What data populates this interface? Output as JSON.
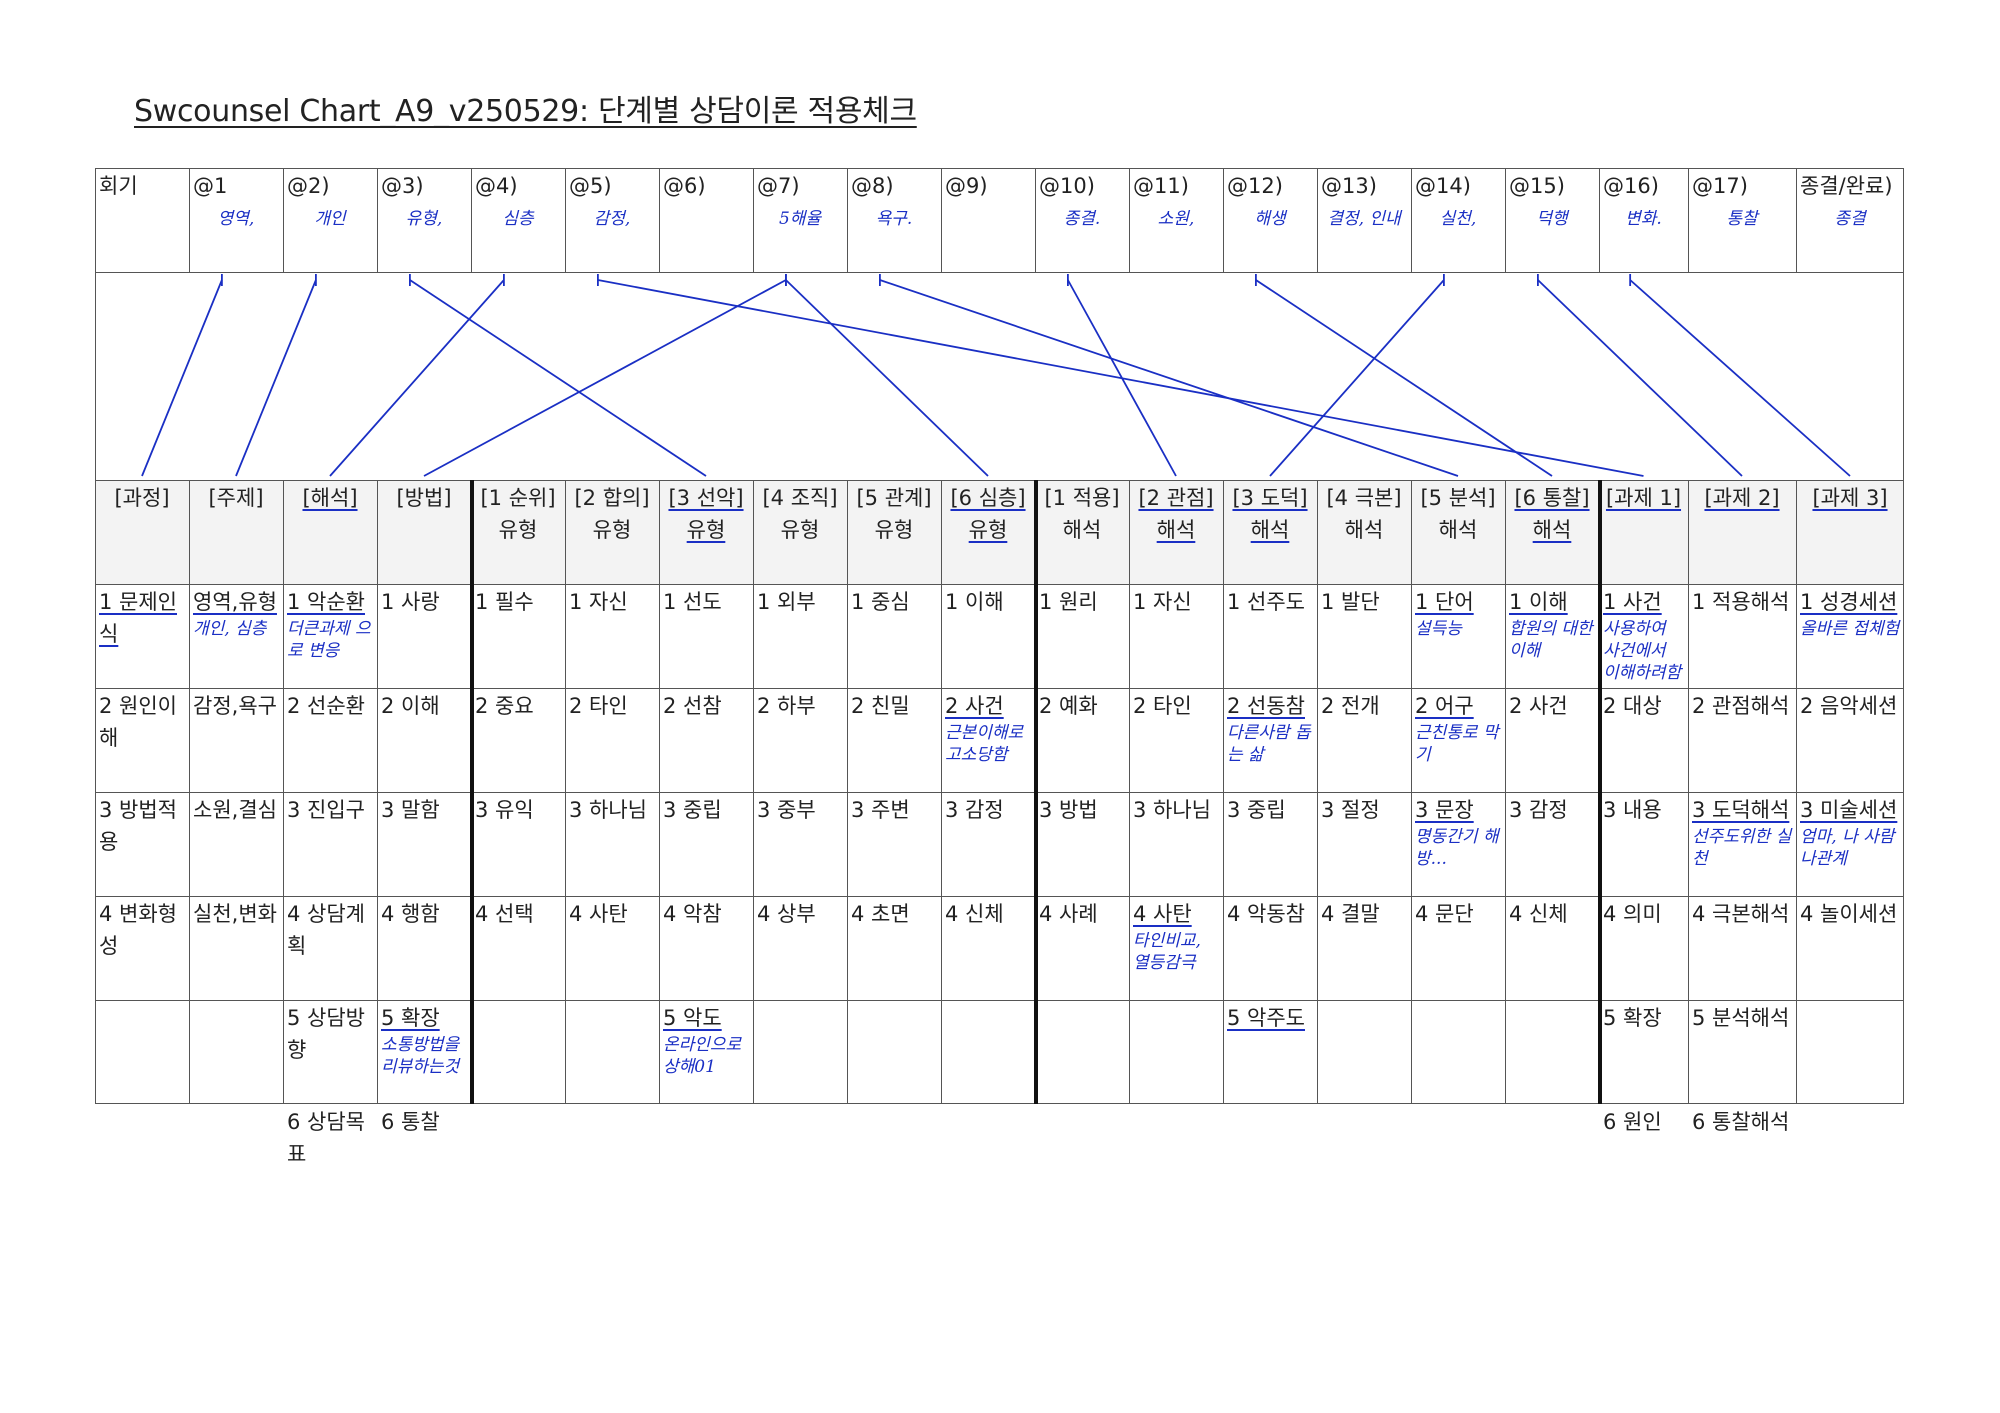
{
  "title": "Swcounsel Chart_A9_v250529: 단계별 상담이론 적용체크",
  "sessions": [
    {
      "label": "회기",
      "note": ""
    },
    {
      "label": "@1",
      "note": "영역,"
    },
    {
      "label": "@2)",
      "note": "개인"
    },
    {
      "label": "@3)",
      "note": "유형,"
    },
    {
      "label": "@4)",
      "note": "심층"
    },
    {
      "label": "@5)",
      "note": "감정,"
    },
    {
      "label": "@6)",
      "note": ""
    },
    {
      "label": "@7)",
      "note": "5해율"
    },
    {
      "label": "@8)",
      "note": "욕구."
    },
    {
      "label": "@9)",
      "note": ""
    },
    {
      "label": "@10)",
      "note": "종결."
    },
    {
      "label": "@11)",
      "note": "소원,"
    },
    {
      "label": "@12)",
      "note": "해생"
    },
    {
      "label": "@13)",
      "note": "결정, 인내"
    },
    {
      "label": "@14)",
      "note": "실천,"
    },
    {
      "label": "@15)",
      "note": "덕행"
    },
    {
      "label": "@16)",
      "note": "변화."
    },
    {
      "label": "@17)",
      "note": "통찰"
    },
    {
      "label": "종결/완료)",
      "note": "종결"
    }
  ],
  "columns": [
    "[과정]",
    "[주제]",
    "[해석]",
    "[방법]",
    "[1 순위]\n유형",
    "[2 합의]\n유형",
    "[3 선악]\n유형",
    "[4 조직]\n유형",
    "[5 관계]\n유형",
    "[6 심층]\n유형",
    "[1 적용]\n해석",
    "[2 관점]\n해석",
    "[3 도덕]\n해석",
    "[4 극본]\n해석",
    "[5 분석]\n해석",
    "[6 통찰]\n해석",
    "[과제 1]",
    "[과제 2]",
    "[과제 3]"
  ],
  "rows": [
    [
      "1 문제인식",
      "영역,유형",
      "1 악순환",
      "1 사랑",
      "1 필수",
      "1 자신",
      "1 선도",
      "1 외부",
      "1 중심",
      "1 이해",
      "1 원리",
      "1 자신",
      "1 선주도",
      "1 발단",
      "1 단어",
      "1 이해",
      "1 사건",
      "1 적용해석",
      "1 성경세션"
    ],
    [
      "2 원인이해",
      "감정,욕구",
      "2 선순환",
      "2 이해",
      "2 중요",
      "2 타인",
      "2 선참",
      "2 하부",
      "2 친밀",
      "2 사건",
      "2 예화",
      "2 타인",
      "2 선동참",
      "2 전개",
      "2 어구",
      "2 사건",
      "2 대상",
      "2 관점해석",
      "2 음악세션"
    ],
    [
      "3 방법적용",
      "소원,결심",
      "3 진입구",
      "3 말함",
      "3 유익",
      "3 하나님",
      "3 중립",
      "3 중부",
      "3 주변",
      "3 감정",
      "3 방법",
      "3 하나님",
      "3 중립",
      "3 절정",
      "3 문장",
      "3 감정",
      "3 내용",
      "3 도덕해석",
      "3 미술세션"
    ],
    [
      "4 변화형성",
      "실천,변화",
      "4 상담계획",
      "4 행함",
      "4 선택",
      "4 사탄",
      "4 악참",
      "4 상부",
      "4 초면",
      "4 신체",
      "4 사례",
      "4 사탄",
      "4 악동참",
      "4 결말",
      "4 문단",
      "4 신체",
      "4 의미",
      "4 극본해석",
      "4 놀이세션"
    ],
    [
      "",
      "",
      "5 상담방향",
      "5 확장",
      "",
      "",
      "5 악도",
      "",
      "",
      "",
      "",
      "",
      "5 악주도",
      "",
      "",
      "",
      "5 확장",
      "5 분석해석",
      ""
    ],
    [
      "",
      "",
      "6 상담목표",
      "6 통찰",
      "",
      "",
      "",
      "",
      "",
      "",
      "",
      "",
      "",
      "",
      "",
      "",
      "6 원인",
      "6 통찰해석",
      ""
    ]
  ],
  "handwritten": [
    {
      "row": 0,
      "col": 1,
      "text": "개인, 심층"
    },
    {
      "row": 0,
      "col": 2,
      "text": "더큰과제 으로 변응"
    },
    {
      "row": 0,
      "col": 14,
      "text": "설득능"
    },
    {
      "row": 0,
      "col": 15,
      "text": "합원의 대한 이해"
    },
    {
      "row": 0,
      "col": 16,
      "text": "사용하여 사건에서 이해하려함"
    },
    {
      "row": 0,
      "col": 18,
      "text": "올바른 접체험"
    },
    {
      "row": 1,
      "col": 9,
      "text": "근본이해로 고소당함"
    },
    {
      "row": 1,
      "col": 12,
      "text": "다른사람 돕는 삶"
    },
    {
      "row": 1,
      "col": 14,
      "text": "근친통로 막기"
    },
    {
      "row": 2,
      "col": 14,
      "text": "명동간기 해방..."
    },
    {
      "row": 2,
      "col": 17,
      "text": "선주도위한 실천"
    },
    {
      "row": 2,
      "col": 18,
      "text": "엄마, 나 사람나관계"
    },
    {
      "row": 3,
      "col": 11,
      "text": "타인비교, 열등감극"
    },
    {
      "row": 4,
      "col": 3,
      "text": "소통방법을 리뷰하는것"
    },
    {
      "row": 4,
      "col": 6,
      "text": "온라인으로 상해01"
    }
  ],
  "underlined": [
    {
      "row": "h",
      "col": 2
    },
    {
      "row": "h",
      "col": 6
    },
    {
      "row": "h",
      "col": 9
    },
    {
      "row": "h",
      "col": 11
    },
    {
      "row": "h",
      "col": 12
    },
    {
      "row": "h",
      "col": 15
    },
    {
      "row": "h",
      "col": 16
    },
    {
      "row": "h",
      "col": 17
    },
    {
      "row": "h",
      "col": 18
    },
    {
      "row": 0,
      "col": 0
    },
    {
      "row": 0,
      "col": 1
    },
    {
      "row": 0,
      "col": 2
    },
    {
      "row": 0,
      "col": 14
    },
    {
      "row": 0,
      "col": 15
    },
    {
      "row": 0,
      "col": 16
    },
    {
      "row": 0,
      "col": 18
    },
    {
      "row": 1,
      "col": 9
    },
    {
      "row": 1,
      "col": 12
    },
    {
      "row": 1,
      "col": 14
    },
    {
      "row": 2,
      "col": 14
    },
    {
      "row": 2,
      "col": 17
    },
    {
      "row": 2,
      "col": 18
    },
    {
      "row": 3,
      "col": 11
    },
    {
      "row": 4,
      "col": 3
    },
    {
      "row": 4,
      "col": 6
    },
    {
      "row": 4,
      "col": 12
    }
  ],
  "links": [
    {
      "from": 1,
      "to": 0
    },
    {
      "from": 2,
      "to": 1
    },
    {
      "from": 3,
      "to": 6
    },
    {
      "from": 4,
      "to": 2
    },
    {
      "from": 5,
      "to": 16
    },
    {
      "from": 7,
      "to": 9
    },
    {
      "from": 7,
      "to": 3
    },
    {
      "from": 8,
      "to": 14
    },
    {
      "from": 10,
      "to": 11
    },
    {
      "from": 12,
      "to": 15
    },
    {
      "from": 14,
      "to": 12
    },
    {
      "from": 15,
      "to": 17
    },
    {
      "from": 16,
      "to": 18
    }
  ],
  "colors": {
    "ink": "#1a2fc4",
    "grid": "#555555",
    "header_bg": "#f3f3f3",
    "text": "#222222"
  }
}
